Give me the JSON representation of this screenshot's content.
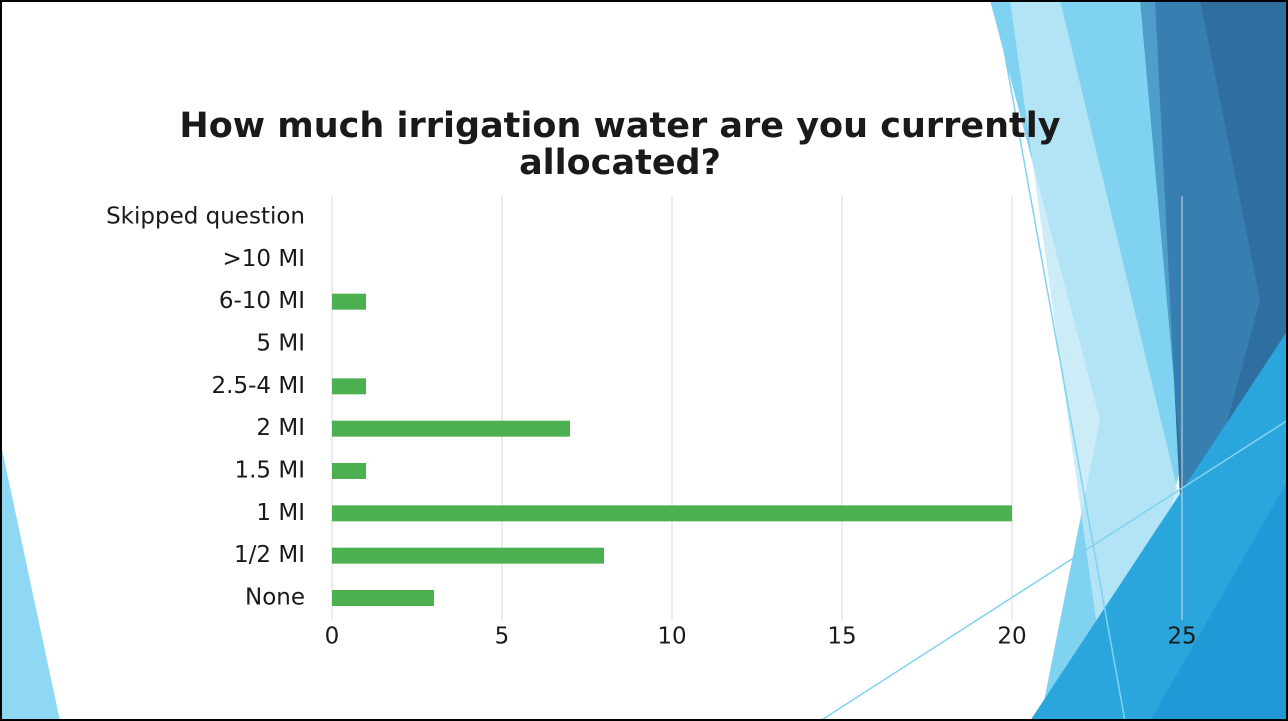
{
  "chart_data": {
    "type": "barh",
    "title": "How much irrigation water are you currently allocated?",
    "categories": [
      "Skipped question",
      ">10 MI",
      "6-10 MI",
      "5 MI",
      "2.5-4 MI",
      "2 MI",
      "1.5 MI",
      "1 MI",
      "1/2 MI",
      "None"
    ],
    "values": [
      0,
      0,
      1,
      0,
      1,
      7,
      1,
      20,
      8,
      3
    ],
    "color": "#4caf50",
    "xlim": [
      0,
      25
    ],
    "xticks": [
      0,
      5,
      10,
      15,
      20,
      25
    ],
    "grid": true
  }
}
